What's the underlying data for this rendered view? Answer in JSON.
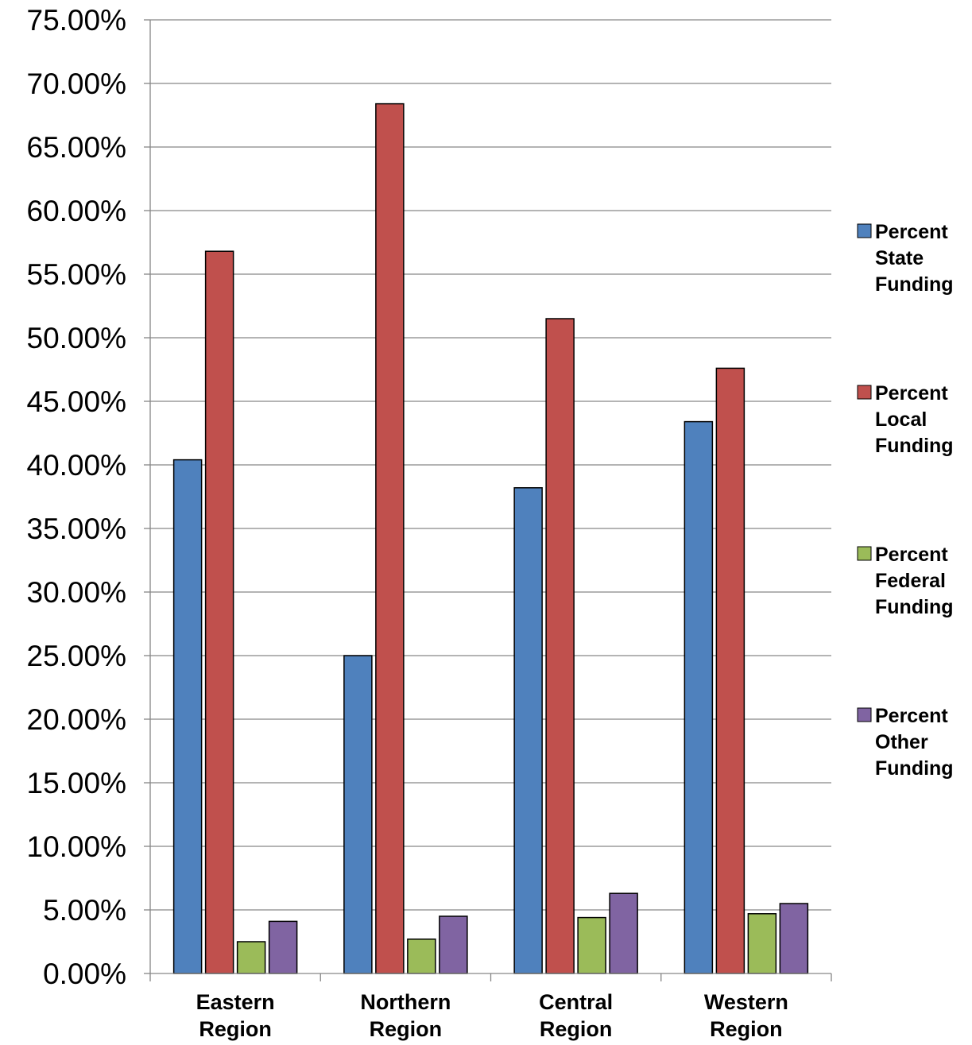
{
  "chart_data": {
    "type": "bar",
    "categories": [
      [
        "Eastern",
        "Region"
      ],
      [
        "Northern",
        "Region"
      ],
      [
        "Central",
        "Region"
      ],
      [
        "Western",
        "Region"
      ]
    ],
    "series": [
      {
        "name": [
          "Percent",
          "State",
          "Funding"
        ],
        "color": "#4F81BD",
        "values": [
          40.4,
          25.0,
          38.2,
          43.4
        ]
      },
      {
        "name": [
          "Percent",
          "Local",
          "Funding"
        ],
        "color": "#C0504D",
        "values": [
          56.8,
          68.4,
          51.5,
          47.6
        ]
      },
      {
        "name": [
          "Percent",
          "Federal",
          "Funding"
        ],
        "color": "#9BBB59",
        "values": [
          2.5,
          2.7,
          4.4,
          4.7
        ]
      },
      {
        "name": [
          "Percent",
          "Other",
          "Funding"
        ],
        "color": "#8064A2",
        "values": [
          4.1,
          4.5,
          6.3,
          5.5
        ]
      }
    ],
    "yticks": [
      "0.00%",
      "5.00%",
      "10.00%",
      "15.00%",
      "20.00%",
      "25.00%",
      "30.00%",
      "35.00%",
      "40.00%",
      "45.00%",
      "50.00%",
      "55.00%",
      "60.00%",
      "65.00%",
      "70.00%",
      "75.00%"
    ],
    "ylim": [
      0,
      75
    ],
    "ystep": 5,
    "grid": true,
    "legend_position": "right",
    "gridline_color": "#868686",
    "bar_outline_color": "#000000"
  }
}
